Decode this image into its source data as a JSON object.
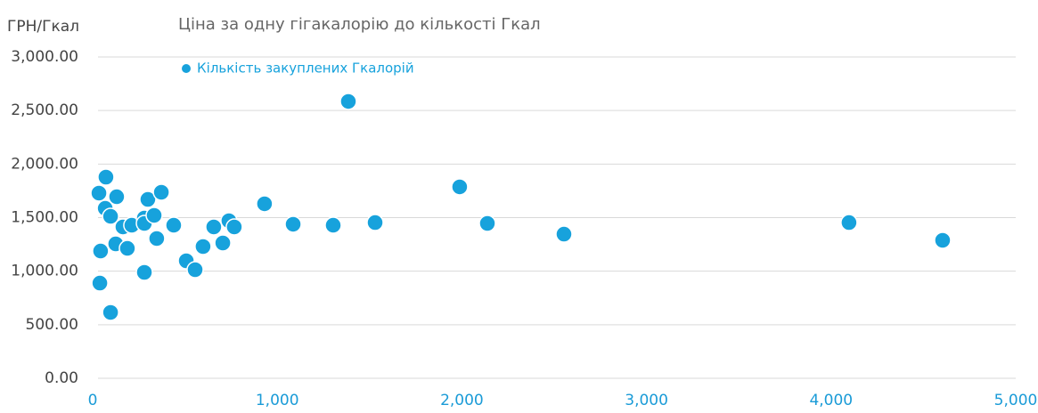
{
  "chart_data": {
    "type": "scatter",
    "title": "Ціна за одну гігакалорію до кількості Гкал",
    "y_label": "ГРН/Гкал",
    "series": [
      {
        "name": "Кількість закуплених Гкалорій",
        "color": "#17a2dc",
        "x": [
          34,
          72,
          68,
          97,
          130,
          43,
          39,
          97,
          125,
          164,
          188,
          212,
          280,
          280,
          280,
          299,
          333,
          347,
          372,
          439,
          507,
          555,
          598,
          656,
          705,
          738,
          767,
          931,
          1086,
          1303,
          1385,
          1530,
          1988,
          2138,
          2553,
          4097,
          4604
        ],
        "values": [
          1729,
          1878,
          1587,
          1512,
          1695,
          1188,
          889,
          615,
          1255,
          1413,
          1213,
          1429,
          1496,
          1446,
          989,
          1670,
          1521,
          1305,
          1737,
          1429,
          1097,
          1014,
          1230,
          1413,
          1263,
          1471,
          1413,
          1629,
          1438,
          1429,
          2585,
          1454,
          1787,
          1446,
          1346,
          1454,
          1288
        ]
      }
    ],
    "xlim": [
      0,
      5000
    ],
    "xticks": [
      0,
      {
        "value": 1000,
        "label": "1,000"
      },
      {
        "value": 2000,
        "label": "2,000"
      },
      {
        "value": 3000,
        "label": "3,000"
      },
      {
        "value": 4000,
        "label": "4,000"
      },
      {
        "value": 5000,
        "label": "5,000"
      }
    ],
    "ylim": [
      0,
      3000
    ],
    "yticks": [
      {
        "value": 0,
        "label": "0.00"
      },
      {
        "value": 500,
        "label": "500.00"
      },
      {
        "value": 1000,
        "label": "1,000.00"
      },
      {
        "value": 1500,
        "label": "1,500.00"
      },
      {
        "value": 2000,
        "label": "2,000.00"
      },
      {
        "value": 2500,
        "label": "2,500.00"
      },
      {
        "value": 3000,
        "label": "3,000.00"
      }
    ],
    "grid": true,
    "legend": "top-left"
  }
}
